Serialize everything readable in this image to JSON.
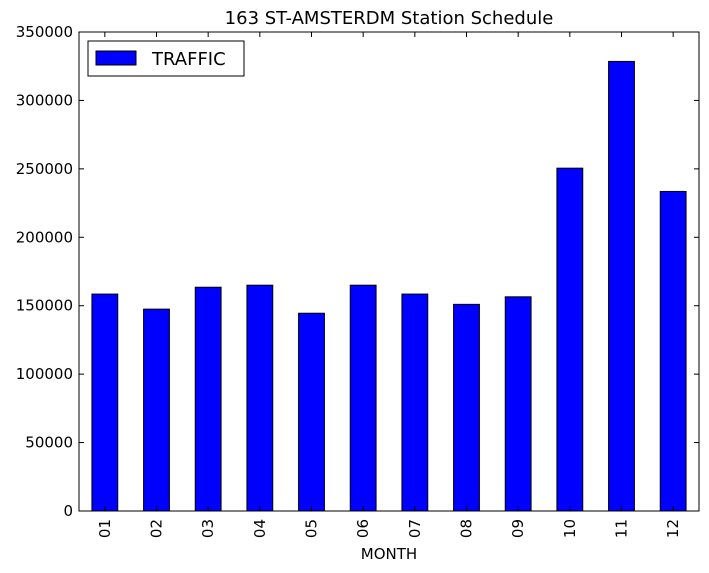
{
  "chart_data": {
    "type": "bar",
    "title": "163 ST-AMSTERDM Station Schedule",
    "xlabel": "MONTH",
    "ylabel": "",
    "categories": [
      "01",
      "02",
      "03",
      "04",
      "05",
      "06",
      "07",
      "08",
      "09",
      "10",
      "11",
      "12"
    ],
    "series": [
      {
        "name": "TRAFFIC",
        "values": [
          158500,
          147500,
          163500,
          165000,
          144500,
          165000,
          158500,
          151000,
          156500,
          250500,
          328500,
          233500
        ]
      }
    ],
    "ylim": [
      0,
      350000
    ],
    "yticks": [
      0,
      50000,
      100000,
      150000,
      200000,
      250000,
      300000,
      350000
    ],
    "ytick_labels": [
      "0",
      "50000",
      "100000",
      "150000",
      "200000",
      "250000",
      "300000",
      "350000"
    ],
    "legend_position": "top-left",
    "grid": false,
    "colors": {
      "bar_fill": "#0000ff",
      "bar_edge": "#000000",
      "axes": "#000000"
    }
  }
}
